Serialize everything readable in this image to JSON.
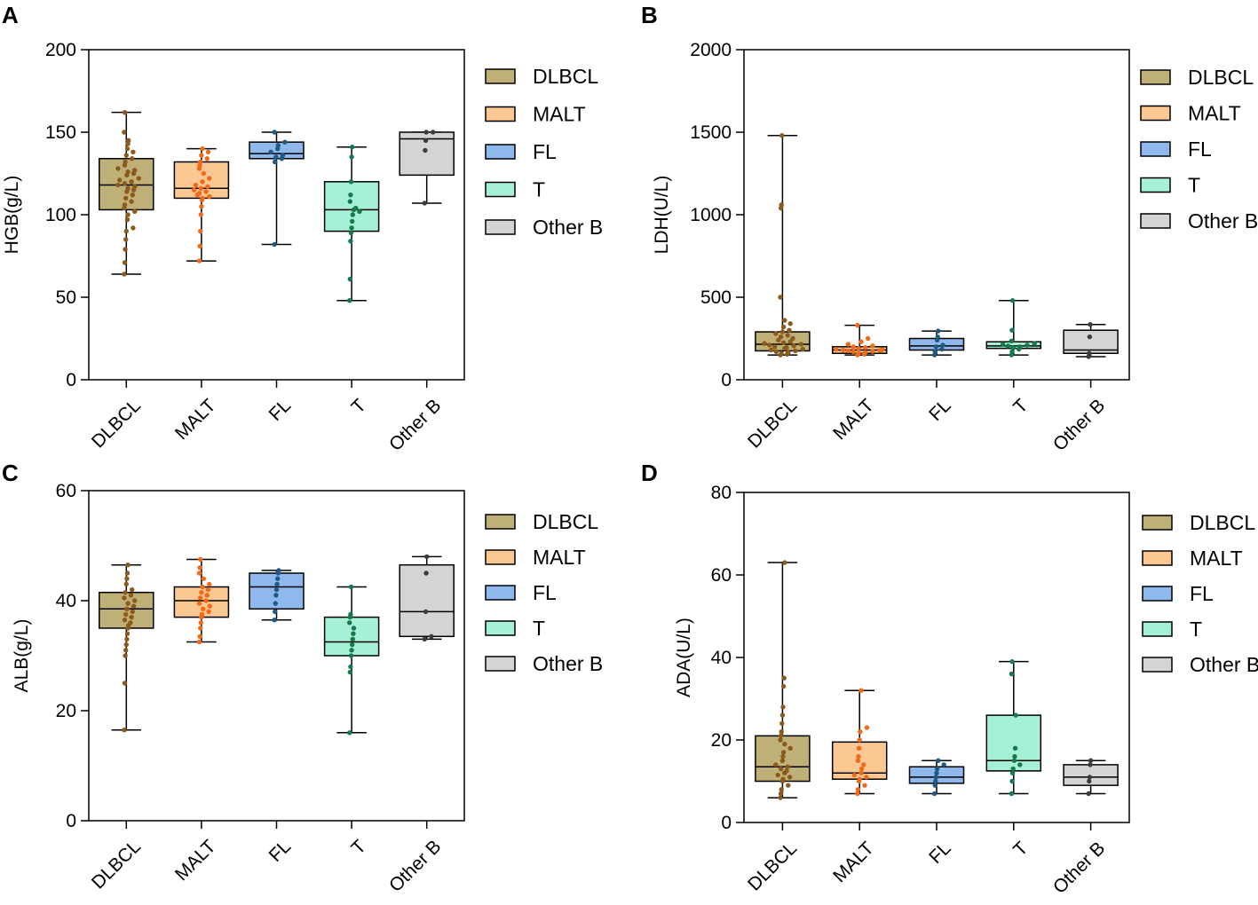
{
  "colors": {
    "DLBCL": "#bfb077",
    "DLBCL_dot": "#8b5a1c",
    "MALT": "#fbc894",
    "MALT_dot": "#f06a18",
    "FL": "#8fb8ec",
    "FL_dot": "#1e5a84",
    "T": "#a6f0d8",
    "T_dot": "#157a4c",
    "Other B": "#d4d4d4",
    "Other B_dot": "#3c3c3c"
  },
  "legend": [
    "DLBCL",
    "MALT",
    "FL",
    "T",
    "Other B"
  ],
  "chart_data": [
    {
      "panel": "A",
      "type": "box",
      "ylabel": "HGB(g/L)",
      "ylim": [
        0,
        200
      ],
      "yticks": [
        0,
        50,
        100,
        150,
        200
      ],
      "categories": [
        "DLBCL",
        "MALT",
        "FL",
        "T",
        "Other B"
      ],
      "boxes": [
        {
          "category": "DLBCL",
          "min": 64,
          "q1": 103,
          "median": 118,
          "q3": 134,
          "max": 162,
          "points": [
            64,
            71,
            79,
            85,
            90,
            92,
            97,
            100,
            102,
            104,
            106,
            108,
            110,
            112,
            114,
            115,
            116,
            117,
            118,
            119,
            120,
            121,
            122,
            124,
            125,
            126,
            127,
            128,
            130,
            132,
            134,
            136,
            138,
            140,
            143,
            145,
            150,
            162
          ]
        },
        {
          "category": "MALT",
          "min": 72,
          "q1": 110,
          "median": 116,
          "q3": 132,
          "max": 140,
          "points": [
            72,
            81,
            90,
            100,
            105,
            109,
            110,
            111,
            112,
            113,
            114,
            115,
            116,
            117,
            118,
            120,
            122,
            125,
            128,
            130,
            132,
            134,
            136,
            138,
            140
          ]
        },
        {
          "category": "FL",
          "min": 82,
          "q1": 134,
          "median": 137,
          "q3": 144,
          "max": 150,
          "points": [
            82,
            132,
            134,
            135,
            136,
            138,
            140,
            142,
            144,
            150
          ]
        },
        {
          "category": "T",
          "min": 48,
          "q1": 90,
          "median": 103,
          "q3": 120,
          "max": 141,
          "points": [
            48,
            61,
            84,
            89,
            92,
            96,
            100,
            102,
            103,
            104,
            108,
            112,
            120,
            135,
            141
          ]
        },
        {
          "category": "Other B",
          "min": 107,
          "q1": 124,
          "median": 146,
          "q3": 150,
          "max": 150,
          "points": [
            107,
            139,
            145,
            150,
            150
          ]
        }
      ]
    },
    {
      "panel": "B",
      "type": "box",
      "ylabel": "LDH(U/L)",
      "ylim": [
        0,
        2000
      ],
      "yticks": [
        0,
        500,
        1000,
        1500,
        2000
      ],
      "categories": [
        "DLBCL",
        "MALT",
        "FL",
        "T",
        "Other B"
      ],
      "boxes": [
        {
          "category": "DLBCL",
          "min": 150,
          "q1": 175,
          "median": 215,
          "q3": 290,
          "max": 1480,
          "points": [
            150,
            155,
            160,
            165,
            170,
            175,
            180,
            185,
            190,
            195,
            200,
            205,
            210,
            215,
            220,
            225,
            230,
            240,
            250,
            260,
            270,
            280,
            290,
            300,
            320,
            340,
            360,
            500,
            1040,
            1060,
            1480
          ]
        },
        {
          "category": "MALT",
          "min": 150,
          "q1": 160,
          "median": 180,
          "q3": 200,
          "max": 330,
          "points": [
            150,
            155,
            160,
            165,
            170,
            172,
            175,
            178,
            180,
            182,
            185,
            190,
            195,
            200,
            205,
            215,
            230,
            250,
            330
          ]
        },
        {
          "category": "FL",
          "min": 150,
          "q1": 180,
          "median": 205,
          "q3": 250,
          "max": 295,
          "points": [
            150,
            170,
            185,
            200,
            210,
            240,
            260,
            295
          ]
        },
        {
          "category": "T",
          "min": 150,
          "q1": 190,
          "median": 205,
          "q3": 230,
          "max": 480,
          "points": [
            150,
            170,
            185,
            195,
            200,
            205,
            210,
            215,
            220,
            235,
            300,
            480
          ]
        },
        {
          "category": "Other B",
          "min": 140,
          "q1": 160,
          "median": 180,
          "q3": 300,
          "max": 335,
          "points": [
            140,
            160,
            260,
            335
          ]
        }
      ]
    },
    {
      "panel": "C",
      "type": "box",
      "ylabel": "ALB(g/L)",
      "ylim": [
        0,
        60
      ],
      "yticks": [
        0,
        20,
        40,
        60
      ],
      "categories": [
        "DLBCL",
        "MALT",
        "FL",
        "T",
        "Other B"
      ],
      "boxes": [
        {
          "category": "DLBCL",
          "min": 16.5,
          "q1": 35,
          "median": 38.5,
          "q3": 41.5,
          "max": 46.5,
          "points": [
            16.5,
            25,
            30,
            31,
            32,
            33,
            34,
            35,
            35.5,
            36,
            36.5,
            37,
            37.5,
            38,
            38.5,
            39,
            39.5,
            40,
            40.5,
            41,
            41.5,
            42,
            43,
            44,
            45,
            46.5
          ]
        },
        {
          "category": "MALT",
          "min": 32.5,
          "q1": 37,
          "median": 40,
          "q3": 42.5,
          "max": 47.5,
          "points": [
            32.5,
            33.5,
            35,
            36,
            37,
            37.5,
            38,
            38.5,
            39,
            39.5,
            40,
            40.5,
            41,
            41.5,
            42,
            42.5,
            43,
            44,
            45,
            46,
            47.5
          ]
        },
        {
          "category": "FL",
          "min": 36.5,
          "q1": 38.5,
          "median": 42.5,
          "q3": 45,
          "max": 45.5,
          "points": [
            36.5,
            38,
            39.5,
            41,
            42,
            43,
            44,
            45,
            45.5
          ]
        },
        {
          "category": "T",
          "min": 16,
          "q1": 30,
          "median": 32.5,
          "q3": 37,
          "max": 42.5,
          "points": [
            16,
            27,
            28,
            30,
            31,
            32,
            33,
            34,
            35,
            36,
            37,
            37.5,
            42.5
          ]
        },
        {
          "category": "Other B",
          "min": 33,
          "q1": 33.5,
          "median": 38,
          "q3": 46.5,
          "max": 48,
          "points": [
            33,
            33.5,
            38,
            45,
            48
          ]
        }
      ]
    },
    {
      "panel": "D",
      "type": "box",
      "ylabel": "ADA(U/L)",
      "ylim": [
        0,
        80
      ],
      "yticks": [
        0,
        20,
        40,
        60,
        80
      ],
      "categories": [
        "DLBCL",
        "MALT",
        "FL",
        "T",
        "Other B"
      ],
      "boxes": [
        {
          "category": "DLBCL",
          "min": 6,
          "q1": 10,
          "median": 13.5,
          "q3": 21,
          "max": 63,
          "points": [
            6,
            7,
            8,
            9,
            10,
            10.5,
            11,
            11.5,
            12,
            12.5,
            13,
            13.5,
            14,
            15,
            16,
            17,
            18,
            19,
            20,
            21,
            22,
            24,
            26,
            28,
            33,
            35,
            63
          ]
        },
        {
          "category": "MALT",
          "min": 7,
          "q1": 10.5,
          "median": 12,
          "q3": 19.5,
          "max": 32,
          "points": [
            7,
            8,
            9,
            10,
            10.5,
            11,
            11.5,
            12,
            13,
            14,
            15,
            16,
            18,
            20,
            22,
            23,
            32
          ]
        },
        {
          "category": "FL",
          "min": 7,
          "q1": 9.5,
          "median": 11,
          "q3": 13.5,
          "max": 15,
          "points": [
            7,
            9,
            10,
            11,
            12,
            13,
            14,
            15
          ]
        },
        {
          "category": "T",
          "min": 7,
          "q1": 12.5,
          "median": 15,
          "q3": 26,
          "max": 39,
          "points": [
            7,
            10,
            12,
            13,
            14,
            15,
            16,
            18,
            26,
            36,
            39
          ]
        },
        {
          "category": "Other B",
          "min": 7,
          "q1": 9,
          "median": 11,
          "q3": 14,
          "max": 15,
          "points": [
            7,
            10,
            11,
            14,
            15
          ]
        }
      ]
    }
  ]
}
